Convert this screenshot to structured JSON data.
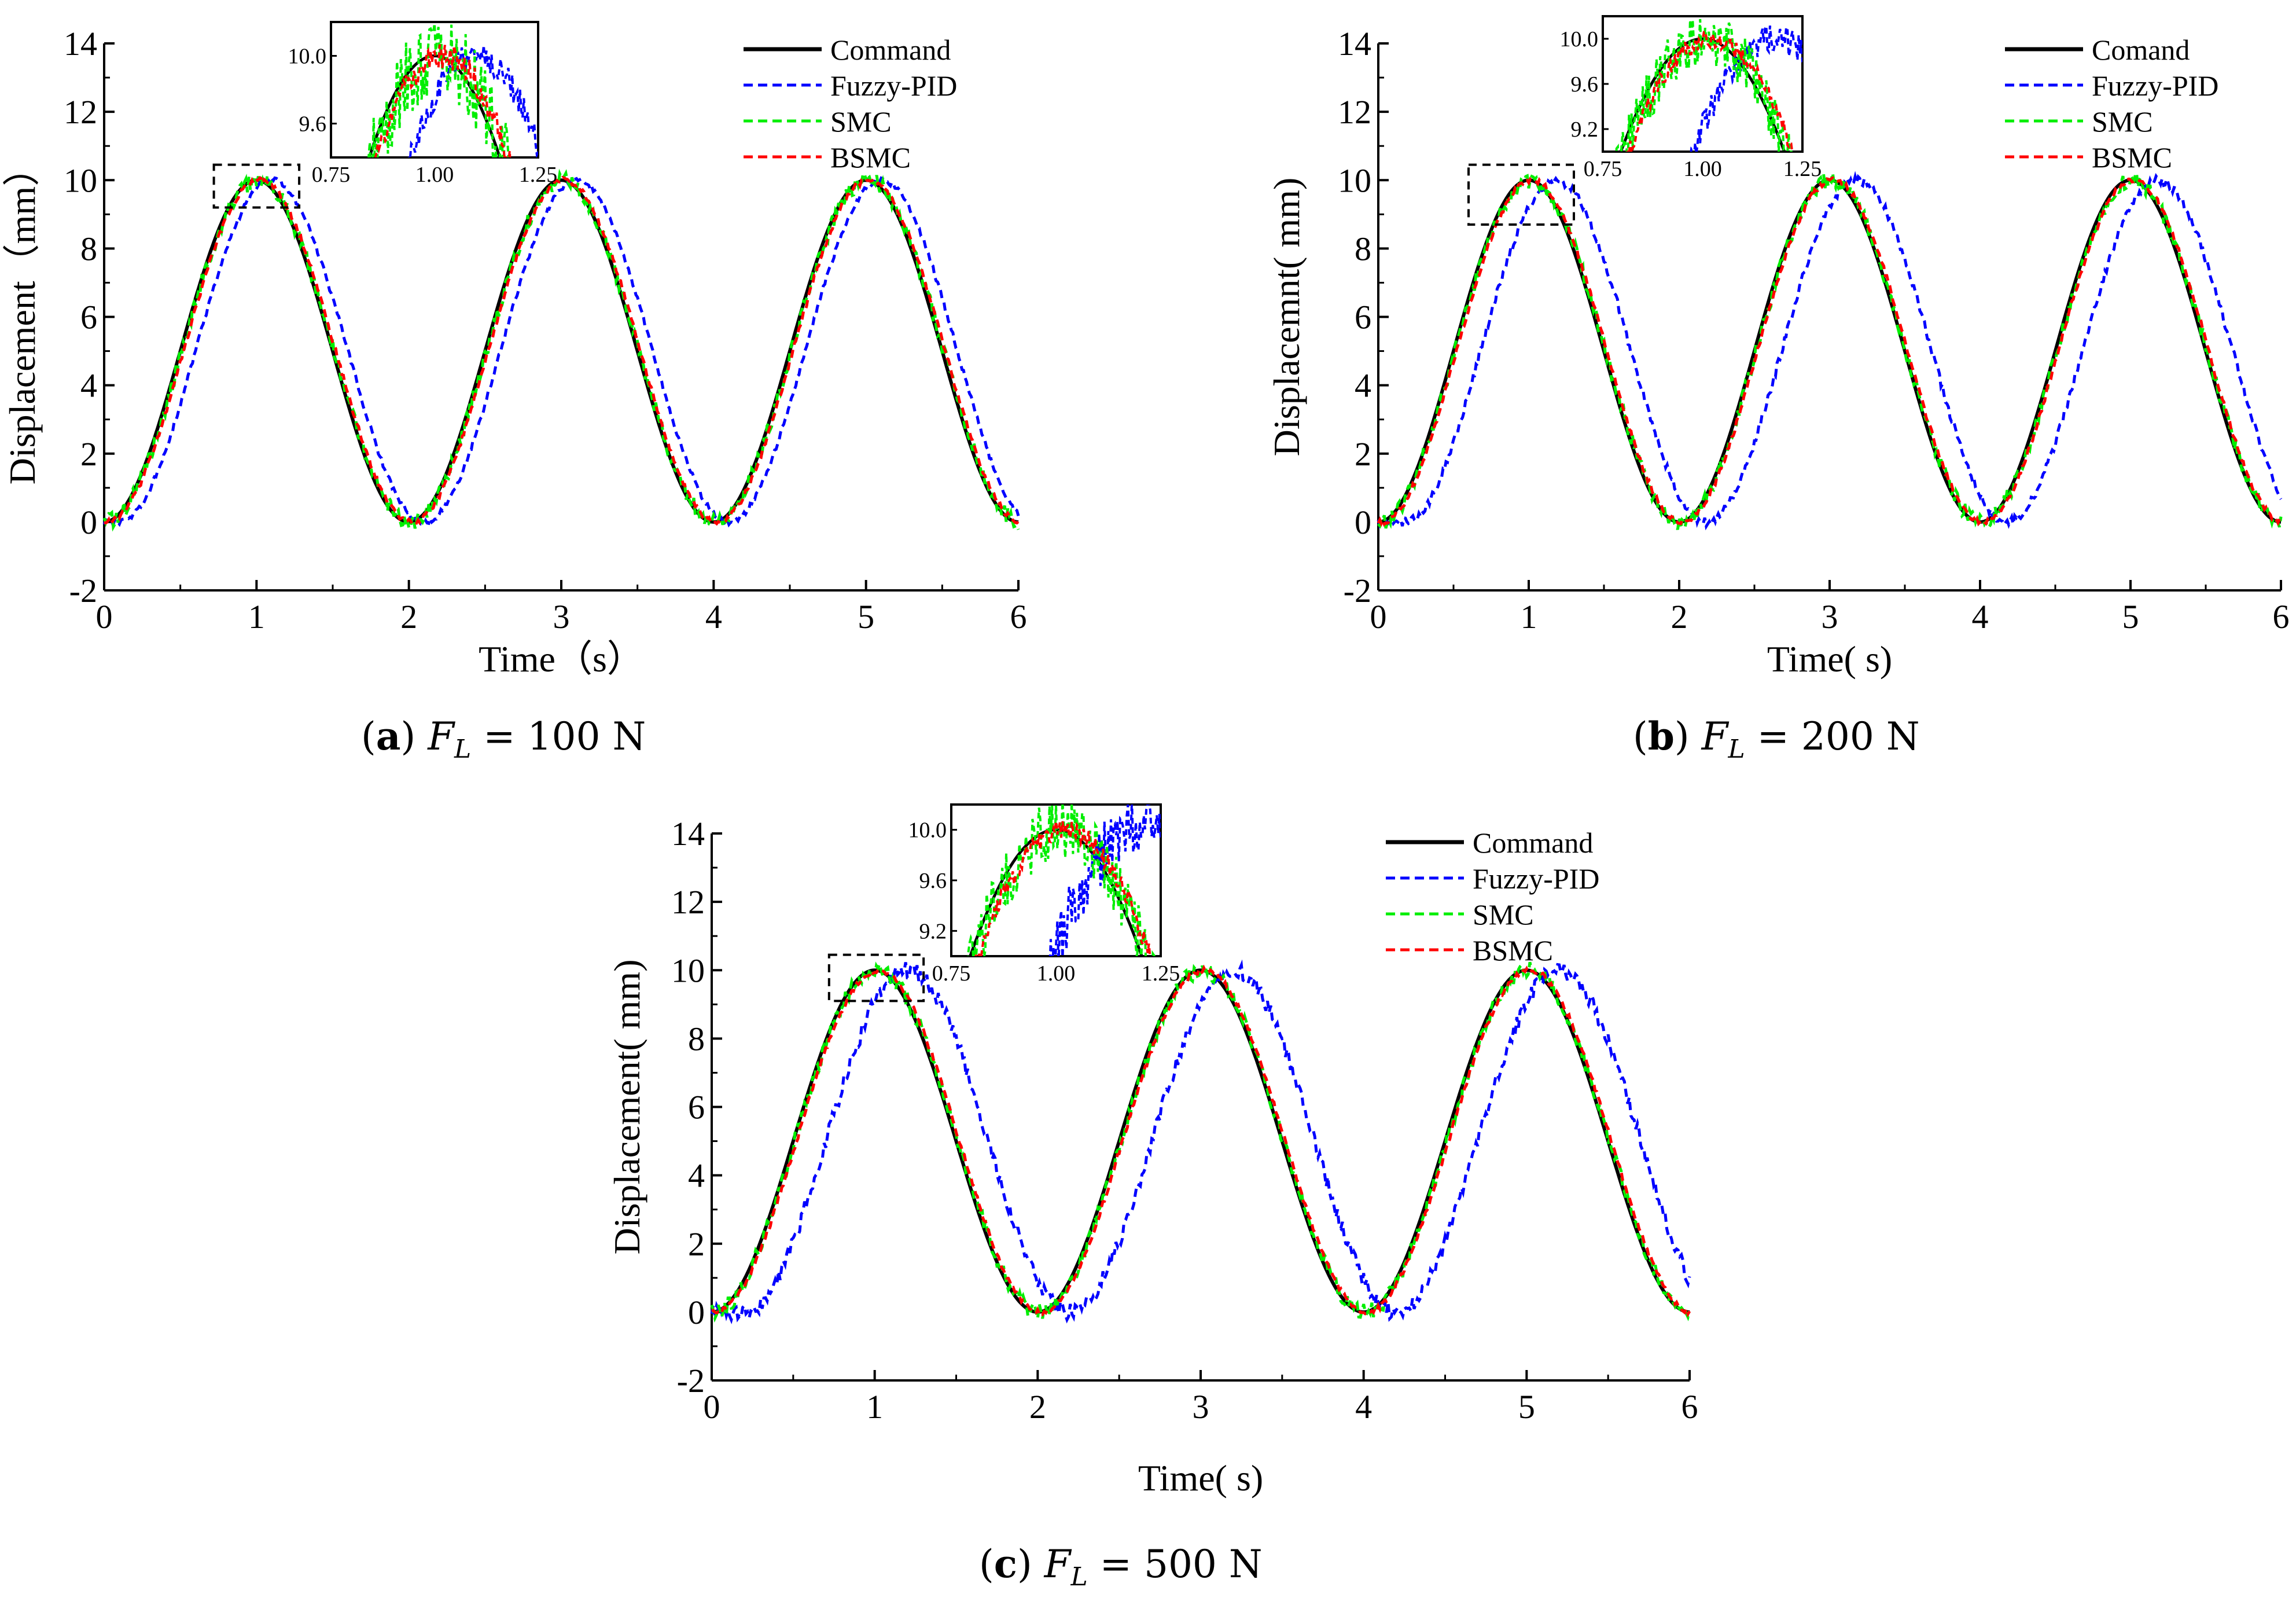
{
  "chart_data": [
    {
      "id": "a",
      "type": "line",
      "caption": {
        "letter": "a",
        "var": "F",
        "sub": "L",
        "rest": "= 100 N"
      },
      "xlabel": "Time（s）",
      "ylabel": "Displacement（mm）",
      "xlim": [
        0,
        6
      ],
      "ylim": [
        -2,
        14
      ],
      "xticks": [
        "0",
        "1",
        "2",
        "3",
        "4",
        "5",
        "6"
      ],
      "yticks": [
        "-2",
        "0",
        "2",
        "4",
        "6",
        "8",
        "10",
        "12",
        "14"
      ],
      "legend": {
        "position": "top-right"
      },
      "series": [
        {
          "name": "Command",
          "color": "#000000",
          "style": "solid",
          "lag": 0,
          "noise": 0
        },
        {
          "name": "Fuzzy-PID",
          "color": "#0000ff",
          "style": "dashed",
          "lag": 0.1,
          "noise": 0.05
        },
        {
          "name": "SMC",
          "color": "#00ee00",
          "style": "dashed",
          "lag": 0.01,
          "noise": 0.15
        },
        {
          "name": "BSMC",
          "color": "#ff0000",
          "style": "dashed",
          "lag": 0.02,
          "noise": 0.05
        }
      ],
      "inset": {
        "xlim": [
          0.75,
          1.25
        ],
        "ylim": [
          9.4,
          10.2
        ],
        "xticks": [
          "0.75",
          "1.00",
          "1.25"
        ],
        "yticks": [
          "9.6",
          "10.0"
        ]
      }
    },
    {
      "id": "b",
      "type": "line",
      "caption": {
        "letter": "b",
        "var": "F",
        "sub": "L",
        "rest": "= 200 N"
      },
      "xlabel": "Time(  s)",
      "ylabel": "Displacemnt(  mm)",
      "xlim": [
        0,
        6
      ],
      "ylim": [
        -2,
        14
      ],
      "xticks": [
        "0",
        "1",
        "2",
        "3",
        "4",
        "5",
        "6"
      ],
      "yticks": [
        "-2",
        "0",
        "2",
        "4",
        "6",
        "8",
        "10",
        "12",
        "14"
      ],
      "legend": {
        "position": "top-right"
      },
      "series": [
        {
          "name": "Comand",
          "color": "#000000",
          "style": "solid",
          "lag": 0,
          "noise": 0
        },
        {
          "name": "Fuzzy-PID",
          "color": "#0000ff",
          "style": "dashed",
          "lag": 0.18,
          "noise": 0.08
        },
        {
          "name": "SMC",
          "color": "#00ee00",
          "style": "dashed",
          "lag": 0.01,
          "noise": 0.15
        },
        {
          "name": "BSMC",
          "color": "#ff0000",
          "style": "dashed",
          "lag": 0.02,
          "noise": 0.05
        }
      ],
      "inset": {
        "xlim": [
          0.75,
          1.25
        ],
        "ylim": [
          9.0,
          10.2
        ],
        "xticks": [
          "0.75",
          "1.00",
          "1.25"
        ],
        "yticks": [
          "9.2",
          "9.6",
          "10.0"
        ]
      }
    },
    {
      "id": "c",
      "type": "line",
      "caption": {
        "letter": "c",
        "var": "F",
        "sub": "L",
        "rest": "= 500 N"
      },
      "xlabel": "Time(  s)",
      "ylabel": "Displacement(  mm)",
      "xlim": [
        0,
        6
      ],
      "ylim": [
        -2,
        14
      ],
      "xticks": [
        "0",
        "1",
        "2",
        "3",
        "4",
        "5",
        "6"
      ],
      "yticks": [
        "-2",
        "0",
        "2",
        "4",
        "6",
        "8",
        "10",
        "12",
        "14"
      ],
      "legend": {
        "position": "top-right"
      },
      "series": [
        {
          "name": "Command",
          "color": "#000000",
          "style": "solid",
          "lag": 0,
          "noise": 0
        },
        {
          "name": "Fuzzy-PID",
          "color": "#0000ff",
          "style": "dashed",
          "lag": 0.2,
          "noise": 0.15
        },
        {
          "name": "SMC",
          "color": "#00ee00",
          "style": "dashed",
          "lag": 0.01,
          "noise": 0.15
        },
        {
          "name": "BSMC",
          "color": "#ff0000",
          "style": "dashed",
          "lag": 0.02,
          "noise": 0.05
        }
      ],
      "inset": {
        "xlim": [
          0.75,
          1.25
        ],
        "ylim": [
          9.0,
          10.2
        ],
        "xticks": [
          "0.75",
          "1.00",
          "1.25"
        ],
        "yticks": [
          "9.2",
          "9.6",
          "10.0"
        ]
      }
    }
  ]
}
